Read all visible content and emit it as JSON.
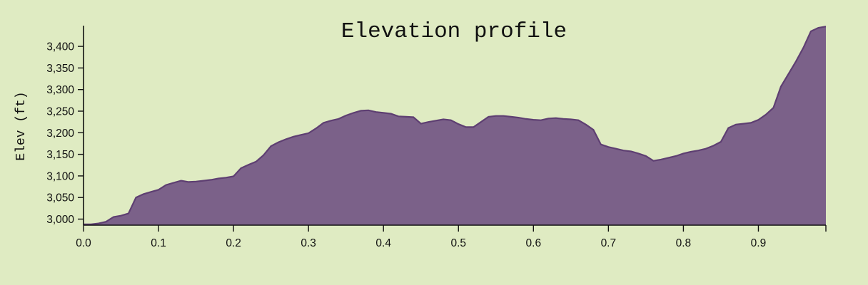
{
  "chart_data": {
    "type": "area",
    "title": "Elevation profile",
    "xlabel": "",
    "ylabel": "Elev (ft)",
    "xlim": [
      0.0,
      0.99
    ],
    "ylim": [
      2986,
      3448
    ],
    "x_ticks": [
      "0.0",
      "0.1",
      "0.2",
      "0.3",
      "0.4",
      "0.5",
      "0.6",
      "0.7",
      "0.8",
      "0.9"
    ],
    "y_ticks": [
      "3,000",
      "3,050",
      "3,100",
      "3,150",
      "3,200",
      "3,250",
      "3,300",
      "3,350",
      "3,400"
    ],
    "grid": false,
    "legend": "none",
    "fill_color": "#7b6189",
    "line_color": "#5e3f72",
    "background_color": "#dfebc2",
    "x": [
      0.0,
      0.01,
      0.02,
      0.03,
      0.04,
      0.05,
      0.06,
      0.07,
      0.08,
      0.09,
      0.1,
      0.11,
      0.12,
      0.13,
      0.14,
      0.15,
      0.16,
      0.17,
      0.18,
      0.19,
      0.2,
      0.21,
      0.22,
      0.23,
      0.24,
      0.25,
      0.26,
      0.27,
      0.28,
      0.29,
      0.3,
      0.31,
      0.32,
      0.33,
      0.34,
      0.35,
      0.36,
      0.37,
      0.38,
      0.39,
      0.4,
      0.41,
      0.42,
      0.43,
      0.44,
      0.45,
      0.46,
      0.47,
      0.48,
      0.49,
      0.5,
      0.51,
      0.52,
      0.53,
      0.54,
      0.55,
      0.56,
      0.57,
      0.58,
      0.59,
      0.6,
      0.61,
      0.62,
      0.63,
      0.64,
      0.65,
      0.66,
      0.67,
      0.68,
      0.69,
      0.7,
      0.71,
      0.72,
      0.73,
      0.74,
      0.75,
      0.76,
      0.77,
      0.78,
      0.79,
      0.8,
      0.81,
      0.82,
      0.83,
      0.84,
      0.85,
      0.86,
      0.87,
      0.88,
      0.89,
      0.9,
      0.91,
      0.92,
      0.93,
      0.94,
      0.95,
      0.96,
      0.97,
      0.98,
      0.99
    ],
    "y": [
      2988,
      2988,
      2990,
      2994,
      3005,
      3008,
      3013,
      3050,
      3058,
      3063,
      3068,
      3079,
      3084,
      3089,
      3086,
      3087,
      3089,
      3091,
      3094,
      3096,
      3099,
      3118,
      3126,
      3133,
      3148,
      3169,
      3178,
      3185,
      3191,
      3195,
      3199,
      3210,
      3223,
      3228,
      3232,
      3240,
      3246,
      3251,
      3252,
      3248,
      3246,
      3244,
      3238,
      3237,
      3236,
      3221,
      3225,
      3228,
      3231,
      3229,
      3220,
      3213,
      3213,
      3225,
      3237,
      3239,
      3239,
      3237,
      3235,
      3232,
      3230,
      3229,
      3233,
      3234,
      3232,
      3231,
      3229,
      3219,
      3207,
      3173,
      3167,
      3163,
      3159,
      3157,
      3152,
      3146,
      3135,
      3138,
      3142,
      3146,
      3152,
      3156,
      3159,
      3163,
      3170,
      3179,
      3211,
      3219,
      3221,
      3223,
      3230,
      3242,
      3258,
      3307,
      3336,
      3365,
      3397,
      3435,
      3443,
      3446
    ]
  }
}
